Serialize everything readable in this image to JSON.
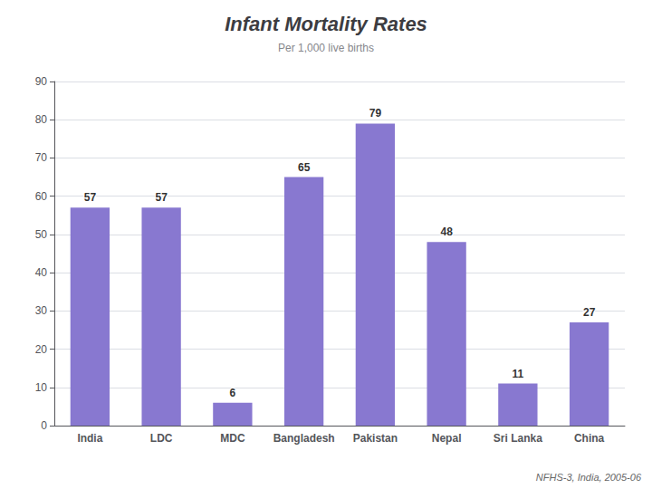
{
  "chart_data": {
    "type": "bar",
    "title": "Infant Mortality Rates",
    "subtitle": "Per 1,000 live births",
    "annotations": [
      "NFHS-3, India, 2005-06"
    ],
    "categories": [
      "India",
      "LDC",
      "MDC",
      "Bangladesh",
      "Pakistan",
      "Nepal",
      "Sri Lanka",
      "China"
    ],
    "values": [
      57,
      57,
      6,
      65,
      79,
      48,
      11,
      27
    ],
    "color": "#8878D0",
    "ylim": [
      0,
      90
    ],
    "yticks": [
      0,
      10,
      20,
      30,
      40,
      50,
      60,
      70,
      80,
      90
    ],
    "grid": true,
    "data_labels": true
  }
}
